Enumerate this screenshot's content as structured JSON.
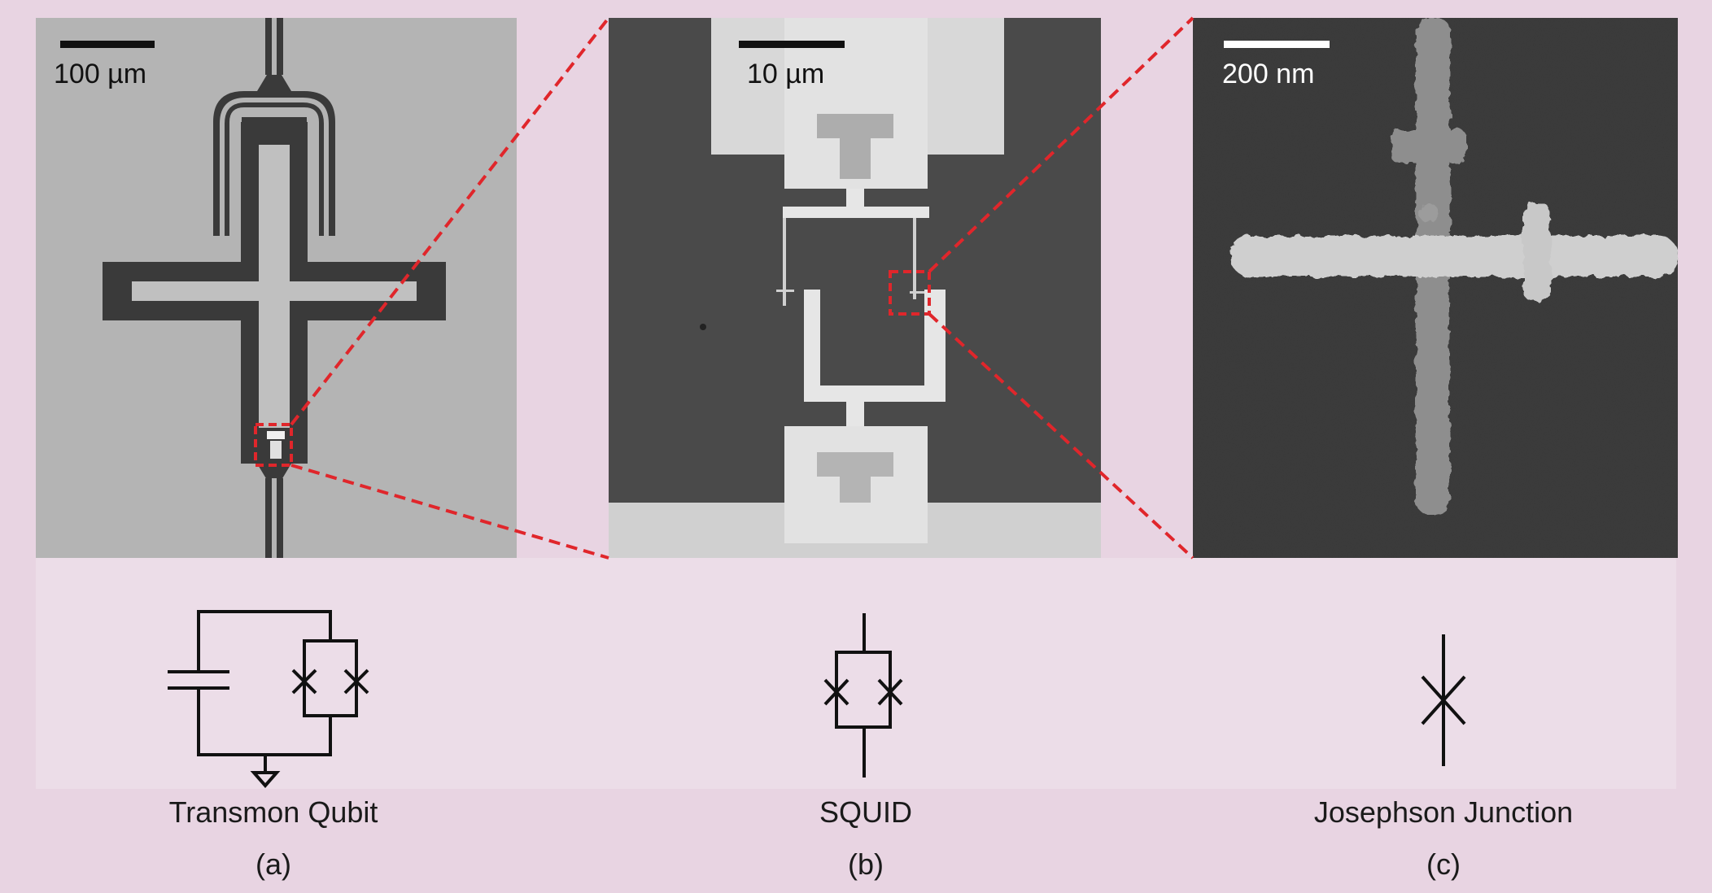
{
  "panels": [
    {
      "id": "a",
      "scale_bar": "100 µm",
      "caption": "Transmon Qubit",
      "letter": "(a)"
    },
    {
      "id": "b",
      "scale_bar": "10 µm",
      "caption": "SQUID",
      "letter": "(b)"
    },
    {
      "id": "c",
      "scale_bar": "200 nm",
      "caption": "Josephson Junction",
      "letter": "(c)"
    }
  ],
  "colors": {
    "background": "#e8d4e2",
    "zoom_lines": "#e0262b",
    "panel_a_bg": "#b4b4b4",
    "panel_b_bg": "#4a4a4a",
    "panel_c_bg": "#3a3a3a",
    "metal_dark": "#3a3a3a",
    "metal_light": "#e6e6e6"
  }
}
